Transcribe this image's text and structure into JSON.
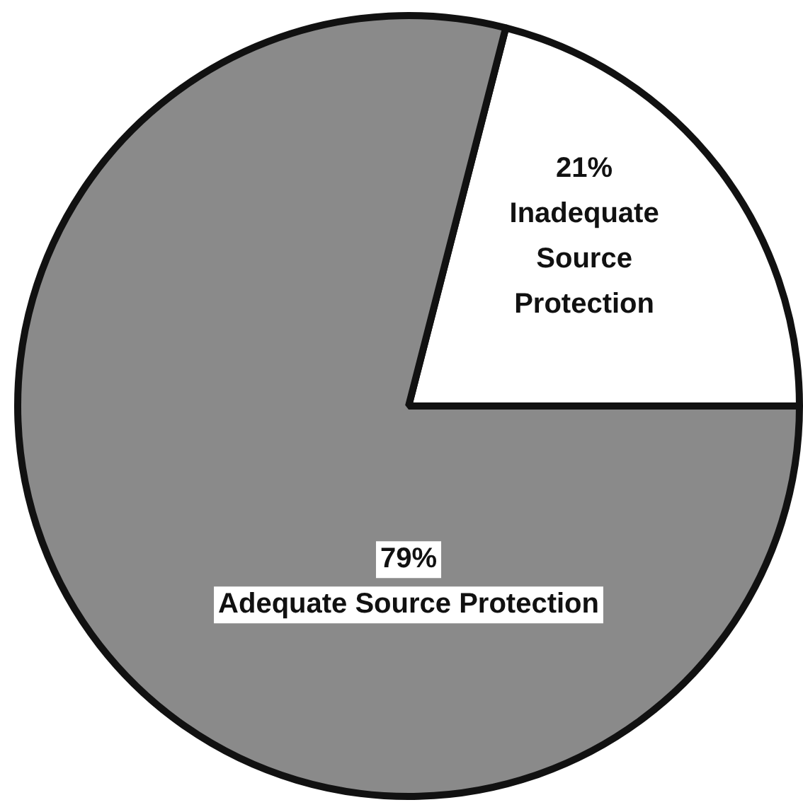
{
  "chart_data": {
    "type": "pie",
    "categories": [
      "Inadequate Source Protection",
      "Adequate Source Protection"
    ],
    "values": [
      21,
      79
    ],
    "colors": [
      "#ffffff",
      "#8a8a8a"
    ],
    "value_labels": [
      "21%",
      "79%"
    ],
    "legend": false
  }
}
